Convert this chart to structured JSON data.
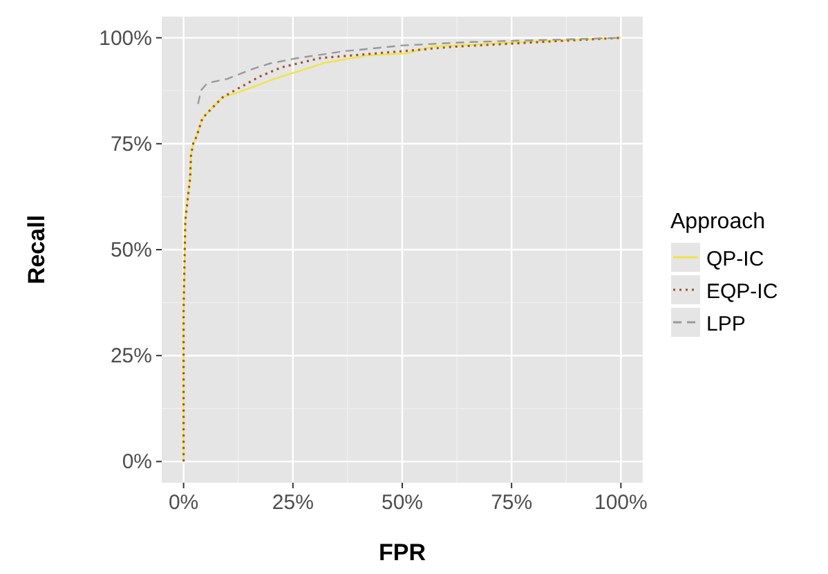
{
  "chart_data": {
    "type": "line",
    "xlabel": "FPR",
    "ylabel": "Recall",
    "legend_title": "Approach",
    "xlim": [
      -5,
      105
    ],
    "ylim": [
      -5,
      105
    ],
    "xticks": [
      {
        "value": 0,
        "label": "0%"
      },
      {
        "value": 25,
        "label": "25%"
      },
      {
        "value": 50,
        "label": "50%"
      },
      {
        "value": 75,
        "label": "75%"
      },
      {
        "value": 100,
        "label": "100%"
      }
    ],
    "yticks": [
      {
        "value": 0,
        "label": "0%"
      },
      {
        "value": 25,
        "label": "25%"
      },
      {
        "value": 50,
        "label": "50%"
      },
      {
        "value": 75,
        "label": "75%"
      },
      {
        "value": 100,
        "label": "100%"
      }
    ],
    "grid": true,
    "legend": "right",
    "series": [
      {
        "name": "QP-IC",
        "color": "#f0e442",
        "line_style": "solid",
        "x": [
          0,
          0,
          0.4,
          1.5,
          1.7,
          2.2,
          3,
          4.3,
          6.4,
          9,
          10.7,
          15.4,
          20.7,
          26,
          32.3,
          41.8,
          50.7,
          57,
          78,
          100
        ],
        "values": [
          0,
          35.5,
          57,
          67,
          72.4,
          75,
          76.8,
          81,
          83.3,
          86,
          86.5,
          88.2,
          90.3,
          92,
          94.1,
          95.8,
          96.3,
          97.9,
          99,
          100
        ]
      },
      {
        "name": "EQP-IC",
        "color": "#a0522d",
        "line_style": "dotted",
        "x": [
          0,
          0,
          0.4,
          1.5,
          1.7,
          2.2,
          3,
          4.3,
          6.4,
          9,
          11.7,
          17.5,
          22.3,
          31.2,
          44,
          62,
          87,
          100
        ],
        "values": [
          0,
          35.5,
          57,
          67,
          72.4,
          75,
          76.8,
          81,
          83.3,
          86,
          87.6,
          90.9,
          93,
          95.2,
          96.3,
          97.9,
          99.3,
          100
        ]
      },
      {
        "name": "LPP",
        "color": "#999999",
        "line_style": "dashed",
        "x": [
          3.3,
          4,
          5.4,
          10,
          15.4,
          19.6,
          26,
          36.5,
          50.2,
          65.5,
          100
        ],
        "values": [
          84.4,
          87.6,
          89.3,
          90.3,
          92.5,
          93.9,
          95.2,
          96.8,
          98.2,
          99,
          100
        ]
      }
    ]
  }
}
